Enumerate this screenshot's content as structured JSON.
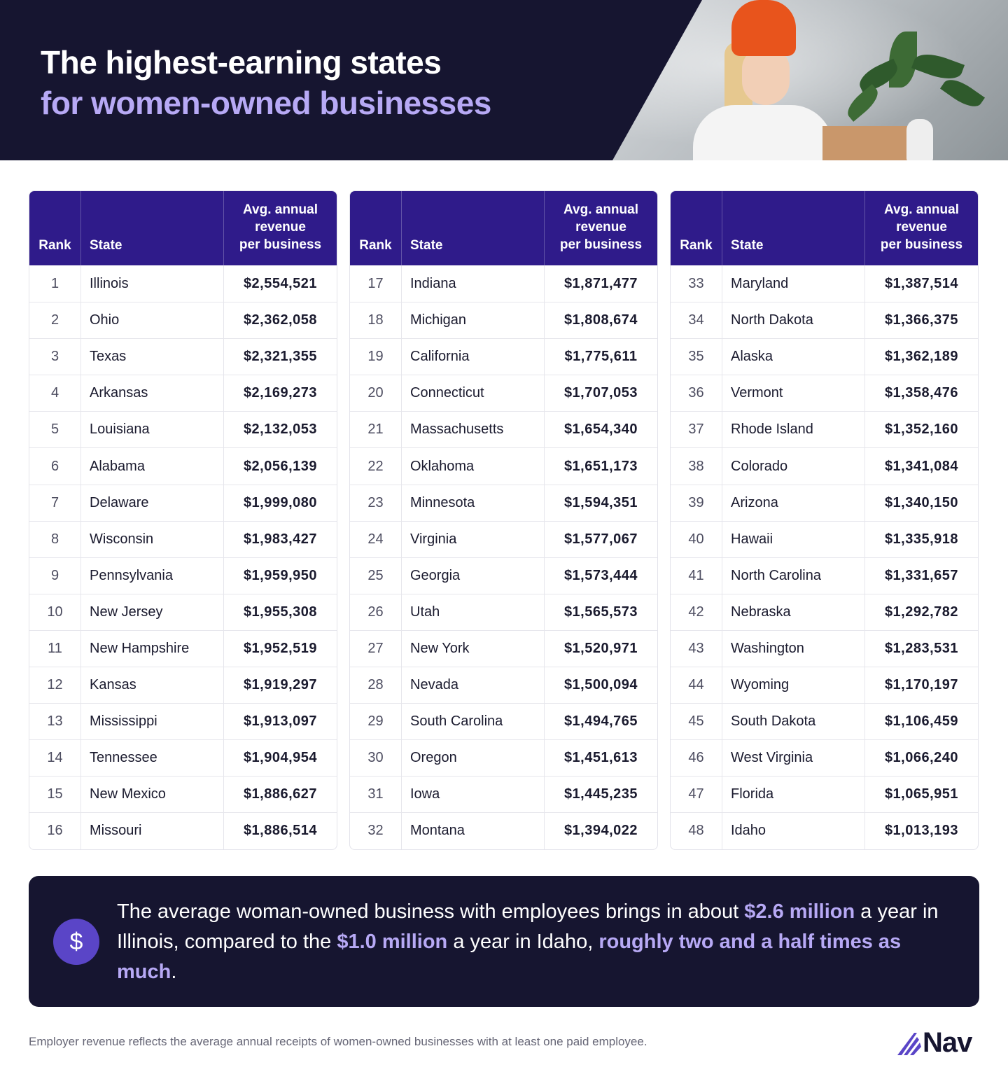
{
  "header": {
    "title_line1": "The highest-earning states",
    "title_line2": "for women-owned businesses"
  },
  "table": {
    "col_rank": "Rank",
    "col_state": "State",
    "col_rev_line1": "Avg. annual",
    "col_rev_line2": "revenue",
    "col_rev_line3": "per business",
    "columns": [
      [
        {
          "rank": "1",
          "state": "Illinois",
          "revenue": "$2,554,521"
        },
        {
          "rank": "2",
          "state": "Ohio",
          "revenue": "$2,362,058"
        },
        {
          "rank": "3",
          "state": "Texas",
          "revenue": "$2,321,355"
        },
        {
          "rank": "4",
          "state": "Arkansas",
          "revenue": "$2,169,273"
        },
        {
          "rank": "5",
          "state": "Louisiana",
          "revenue": "$2,132,053"
        },
        {
          "rank": "6",
          "state": "Alabama",
          "revenue": "$2,056,139"
        },
        {
          "rank": "7",
          "state": "Delaware",
          "revenue": "$1,999,080"
        },
        {
          "rank": "8",
          "state": "Wisconsin",
          "revenue": "$1,983,427"
        },
        {
          "rank": "9",
          "state": "Pennsylvania",
          "revenue": "$1,959,950"
        },
        {
          "rank": "10",
          "state": "New Jersey",
          "revenue": "$1,955,308"
        },
        {
          "rank": "11",
          "state": "New Hampshire",
          "revenue": "$1,952,519"
        },
        {
          "rank": "12",
          "state": "Kansas",
          "revenue": "$1,919,297"
        },
        {
          "rank": "13",
          "state": "Mississippi",
          "revenue": "$1,913,097"
        },
        {
          "rank": "14",
          "state": "Tennessee",
          "revenue": "$1,904,954"
        },
        {
          "rank": "15",
          "state": "New Mexico",
          "revenue": "$1,886,627"
        },
        {
          "rank": "16",
          "state": "Missouri",
          "revenue": "$1,886,514"
        }
      ],
      [
        {
          "rank": "17",
          "state": "Indiana",
          "revenue": "$1,871,477"
        },
        {
          "rank": "18",
          "state": "Michigan",
          "revenue": "$1,808,674"
        },
        {
          "rank": "19",
          "state": "California",
          "revenue": "$1,775,611"
        },
        {
          "rank": "20",
          "state": "Connecticut",
          "revenue": "$1,707,053"
        },
        {
          "rank": "21",
          "state": "Massachusetts",
          "revenue": "$1,654,340"
        },
        {
          "rank": "22",
          "state": "Oklahoma",
          "revenue": "$1,651,173"
        },
        {
          "rank": "23",
          "state": "Minnesota",
          "revenue": "$1,594,351"
        },
        {
          "rank": "24",
          "state": "Virginia",
          "revenue": "$1,577,067"
        },
        {
          "rank": "25",
          "state": "Georgia",
          "revenue": "$1,573,444"
        },
        {
          "rank": "26",
          "state": "Utah",
          "revenue": "$1,565,573"
        },
        {
          "rank": "27",
          "state": "New York",
          "revenue": "$1,520,971"
        },
        {
          "rank": "28",
          "state": "Nevada",
          "revenue": "$1,500,094"
        },
        {
          "rank": "29",
          "state": "South Carolina",
          "revenue": "$1,494,765"
        },
        {
          "rank": "30",
          "state": "Oregon",
          "revenue": "$1,451,613"
        },
        {
          "rank": "31",
          "state": "Iowa",
          "revenue": "$1,445,235"
        },
        {
          "rank": "32",
          "state": "Montana",
          "revenue": "$1,394,022"
        }
      ],
      [
        {
          "rank": "33",
          "state": "Maryland",
          "revenue": "$1,387,514"
        },
        {
          "rank": "34",
          "state": "North Dakota",
          "revenue": "$1,366,375"
        },
        {
          "rank": "35",
          "state": "Alaska",
          "revenue": "$1,362,189"
        },
        {
          "rank": "36",
          "state": "Vermont",
          "revenue": "$1,358,476"
        },
        {
          "rank": "37",
          "state": "Rhode Island",
          "revenue": "$1,352,160"
        },
        {
          "rank": "38",
          "state": "Colorado",
          "revenue": "$1,341,084"
        },
        {
          "rank": "39",
          "state": "Arizona",
          "revenue": "$1,340,150"
        },
        {
          "rank": "40",
          "state": "Hawaii",
          "revenue": "$1,335,918"
        },
        {
          "rank": "41",
          "state": "North Carolina",
          "revenue": "$1,331,657"
        },
        {
          "rank": "42",
          "state": "Nebraska",
          "revenue": "$1,292,782"
        },
        {
          "rank": "43",
          "state": "Washington",
          "revenue": "$1,283,531"
        },
        {
          "rank": "44",
          "state": "Wyoming",
          "revenue": "$1,170,197"
        },
        {
          "rank": "45",
          "state": "South Dakota",
          "revenue": "$1,106,459"
        },
        {
          "rank": "46",
          "state": "West Virginia",
          "revenue": "$1,066,240"
        },
        {
          "rank": "47",
          "state": "Florida",
          "revenue": "$1,065,951"
        },
        {
          "rank": "48",
          "state": "Idaho",
          "revenue": "$1,013,193"
        }
      ]
    ]
  },
  "callout": {
    "icon": "dollar-icon",
    "icon_glyph": "$",
    "text_part1": "The average woman-owned business with employees brings in about ",
    "highlight1": "$2.6 million",
    "text_part2": " a year in Illinois, compared to the ",
    "highlight2": "$1.0 million",
    "text_part3": " a year in Idaho, ",
    "highlight3": "roughly two and a half times as much",
    "text_part4": "."
  },
  "footer": {
    "footnote": "Employer revenue reflects the average annual receipts of women-owned businesses with at least one paid employee.",
    "logo_text": "Nav"
  },
  "colors": {
    "header_bg": "#161530",
    "table_header_bg": "#2f1b8a",
    "accent": "#b7a9f5",
    "icon_bg": "#5a45c7"
  }
}
